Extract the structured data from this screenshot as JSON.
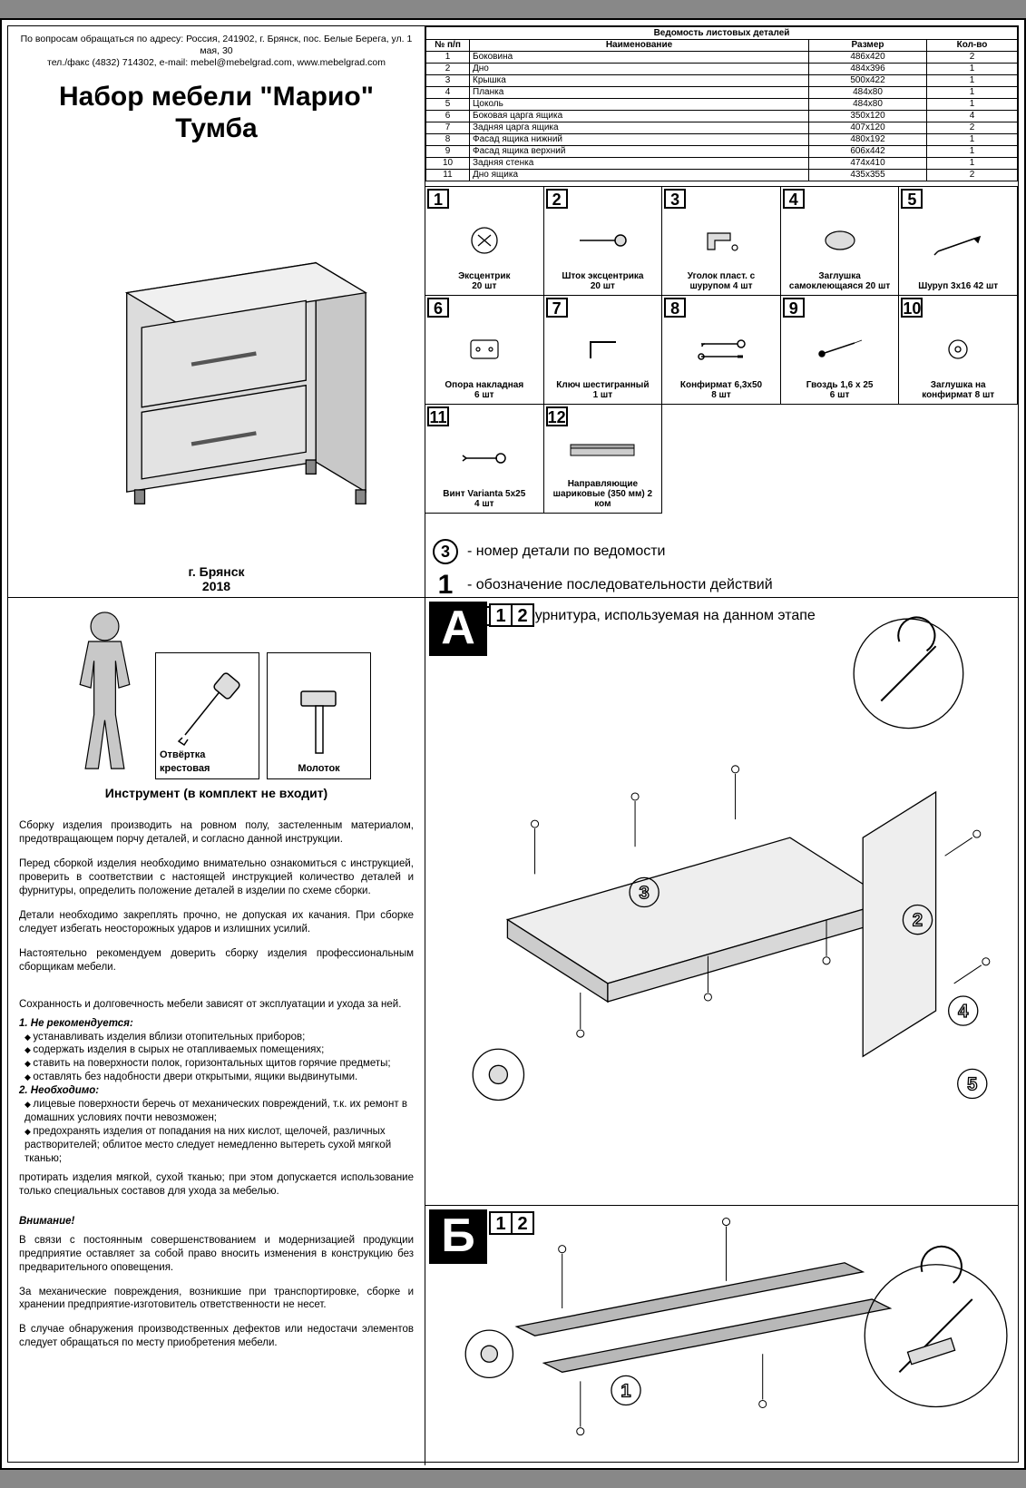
{
  "contact": {
    "line1": "По вопросам обращаться по адресу: Россия, 241902, г. Брянск, пос. Белые Берега, ул. 1 мая, 30",
    "line2": "тел./факс (4832) 714302, e-mail: mebel@mebelgrad.com, www.mebelgrad.com"
  },
  "title": {
    "main": "Набор мебели \"Марио\"",
    "sub": "Тумба"
  },
  "city": {
    "name": "г. Брянск",
    "year": "2018"
  },
  "parts_table": {
    "title": "Ведомость листовых деталей",
    "headers": [
      "№ п/п",
      "Наименование",
      "Размер",
      "Кол-во"
    ],
    "rows": [
      [
        "1",
        "Боковина",
        "486x420",
        "2"
      ],
      [
        "2",
        "Дно",
        "484x396",
        "1"
      ],
      [
        "3",
        "Крышка",
        "500x422",
        "1"
      ],
      [
        "4",
        "Планка",
        "484x80",
        "1"
      ],
      [
        "5",
        "Цоколь",
        "484x80",
        "1"
      ],
      [
        "6",
        "Боковая царга ящика",
        "350x120",
        "4"
      ],
      [
        "7",
        "Задняя царга ящика",
        "407x120",
        "2"
      ],
      [
        "8",
        "Фасад ящика нижний",
        "480x192",
        "1"
      ],
      [
        "9",
        "Фасад ящика верхний",
        "606x442",
        "1"
      ],
      [
        "10",
        "Задняя стенка",
        "474x410",
        "1"
      ],
      [
        "11",
        "Дно ящика",
        "435x355",
        "2"
      ]
    ]
  },
  "hardware": [
    {
      "n": "1",
      "label": "Эксцентрик",
      "qty": "20 шт"
    },
    {
      "n": "2",
      "label": "Шток эксцентрика",
      "qty": "20 шт"
    },
    {
      "n": "3",
      "label": "Уголок пласт. с",
      "qty": "шурупом 4 шт"
    },
    {
      "n": "4",
      "label": "Заглушка",
      "qty": "самоклеющаяся 20 шт"
    },
    {
      "n": "5",
      "label": "Шуруп 3x16 42 шт",
      "qty": ""
    },
    {
      "n": "6",
      "label": "Опора накладная",
      "qty": "6 шт"
    },
    {
      "n": "7",
      "label": "Ключ шестигранный",
      "qty": "1 шт"
    },
    {
      "n": "8",
      "label": "Конфирмат 6,3x50",
      "qty": "8 шт"
    },
    {
      "n": "9",
      "label": "Гвоздь 1,6 x 25",
      "qty": "6 шт"
    },
    {
      "n": "10",
      "label": "Заглушка на",
      "qty": "конфирмат 8 шт"
    },
    {
      "n": "11",
      "label": "Винт Varianta 5x25",
      "qty": "4 шт"
    },
    {
      "n": "12",
      "label": "Направляющие",
      "qty": "шариковые (350 мм) 2 ком"
    }
  ],
  "legend": {
    "l1": "- номер детали по ведомости",
    "l2": "- обозначение последовательности действий",
    "l3": "- фурнитура, используемая на данном этапе"
  },
  "tools": {
    "t1": "Отвёртка крестовая",
    "t2": "Молоток",
    "caption": "Инструмент (в комплект не входит)"
  },
  "instructions": {
    "p1": "Сборку изделия производить на ровном полу, застеленным материалом, предотвращающем порчу деталей, и согласно данной инструкции.",
    "p2": "Перед сборкой изделия необходимо внимательно ознакомиться с инструкцией, проверить в соответствии с настоящей инструкцией количество деталей и фурнитуры, определить положение деталей в изделии по схеме сборки.",
    "p3": "Детали необходимо закреплять прочно, не допуская их качания. При сборке следует избегать неосторожных ударов и излишних усилий.",
    "p4": "Настоятельно рекомендуем доверить сборку изделия профессиональным сборщикам мебели.",
    "care_title": "Сохранность и долговечность мебели зависят от эксплуатации и ухода за ней.",
    "h1": "1. Не рекомендуется:",
    "b1": "устанавливать изделия вблизи отопительных приборов;",
    "b2": "содержать изделия в сырых не отапливаемых помещениях;",
    "b3": "ставить на поверхности полок, горизонтальных щитов горячие предметы;",
    "b4": "оставлять без надобности двери открытыми, ящики выдвинутыми.",
    "h2": "2. Необходимо:",
    "b5": "лицевые поверхности беречь от механических повреждений, т.к. их ремонт в домашних условиях почти невозможен;",
    "b6": "предохранять изделия от попадания на них кислот, щелочей, различных растворителей; облитое место следует немедленно вытереть сухой мягкой тканью;",
    "p5": "протирать изделия мягкой, сухой тканью; при этом допускается использование только специальных составов для ухода за мебелью.",
    "warn_h": "Внимание!",
    "warn1": "В связи с постоянным совершенствованием и модернизацией продукции предприятие оставляет за собой право вносить изменения в конструкцию без предварительного оповещения.",
    "warn2": "За механические повреждения, возникшие при транспортировке, сборке и хранении предприятие-изготовитель ответственности не несет.",
    "warn3": "В случае обнаружения производственных дефектов или недостачи элементов следует обращаться по месту приобретения мебели."
  },
  "steps": {
    "A": {
      "letter": "А",
      "hw": [
        "1",
        "2"
      ]
    },
    "B": {
      "letter": "Б",
      "hw": [
        "1",
        "2"
      ]
    }
  },
  "colors": {
    "line": "#000000",
    "bg": "#ffffff",
    "panel": "#e8e8e8",
    "panel2": "#d4d4d4",
    "detail_circle_tx": "#000"
  }
}
